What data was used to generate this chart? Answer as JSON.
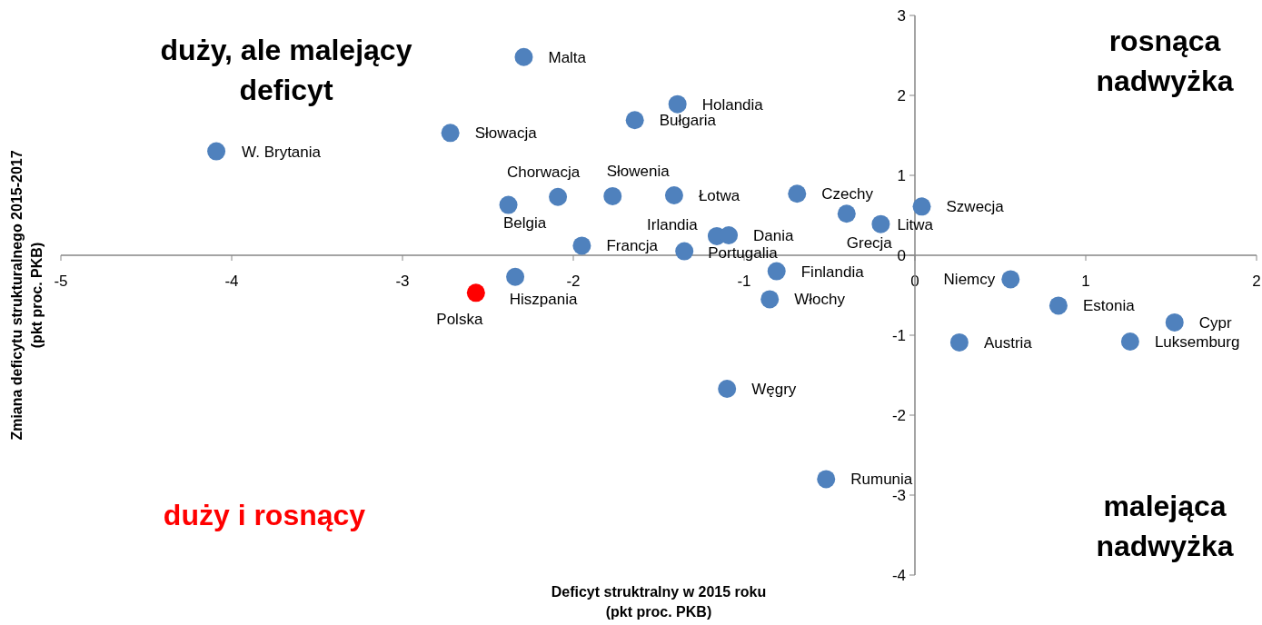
{
  "chart_data": {
    "type": "scatter",
    "xlabel": "Deficyt struktralny w 2015 roku\n(pkt proc. PKB)",
    "ylabel": "Zmiana deficytu strukturalnego 2015-2017\n(pkt proc. PKB)",
    "xlim": [
      -5,
      2
    ],
    "xticks": [
      -5,
      -4,
      -3,
      -2,
      -1,
      0,
      1,
      2
    ],
    "ylim": [
      -4,
      3
    ],
    "yticks": [
      -4,
      -3,
      -2,
      -1,
      0,
      1,
      2,
      3
    ],
    "grid": false,
    "marker": "circle",
    "annotations": [
      "duży, ale malejący\ndeficyt",
      "rosnąca\nnadwyżka",
      "duży i rosnący",
      "malejąca\nnadwyżka"
    ],
    "x": [
      -4.09,
      -2.72,
      -2.29,
      -1.39,
      -1.64,
      -2.38,
      -2.09,
      -1.77,
      -1.41,
      -0.69,
      -0.4,
      -0.2,
      0.04,
      -1.16,
      -1.09,
      -1.95,
      -1.35,
      -2.34,
      -2.57,
      -0.81,
      -0.85,
      -1.1,
      -0.52,
      0.56,
      0.84,
      1.52,
      1.26,
      0.26
    ],
    "values": [
      1.3,
      1.53,
      2.48,
      1.89,
      1.69,
      0.63,
      0.73,
      0.74,
      0.75,
      0.77,
      0.52,
      0.39,
      0.61,
      0.24,
      0.25,
      0.12,
      0.05,
      -0.27,
      -0.47,
      -0.2,
      -0.55,
      -1.67,
      -2.8,
      -0.3,
      -0.63,
      -0.84,
      -1.08,
      -1.09
    ],
    "value_labels": [
      "W. Brytania",
      "Słowacja",
      "Malta",
      "Holandia",
      "Bułgaria",
      "Belgia",
      "Chorwacja",
      "Słowenia",
      "Łotwa",
      "Czechy",
      "Grecja",
      "Litwa",
      "Szwecja",
      "Irlandia",
      "Dania",
      "Francja",
      "Portugalia",
      "Hiszpania",
      "Polska",
      "Finlandia",
      "Włochy",
      "Węgry",
      "Rumunia",
      "Niemcy",
      "Estonia",
      "Cypr",
      "Luksemburg",
      "Austria"
    ],
    "colors": [
      "#4f81bd",
      "#4f81bd",
      "#4f81bd",
      "#4f81bd",
      "#4f81bd",
      "#4f81bd",
      "#4f81bd",
      "#4f81bd",
      "#4f81bd",
      "#4f81bd",
      "#4f81bd",
      "#4f81bd",
      "#4f81bd",
      "#4f81bd",
      "#4f81bd",
      "#4f81bd",
      "#4f81bd",
      "#4f81bd",
      "#ff0000",
      "#4f81bd",
      "#4f81bd",
      "#4f81bd",
      "#4f81bd",
      "#4f81bd",
      "#4f81bd",
      "#4f81bd",
      "#4f81bd",
      "#4f81bd"
    ]
  }
}
